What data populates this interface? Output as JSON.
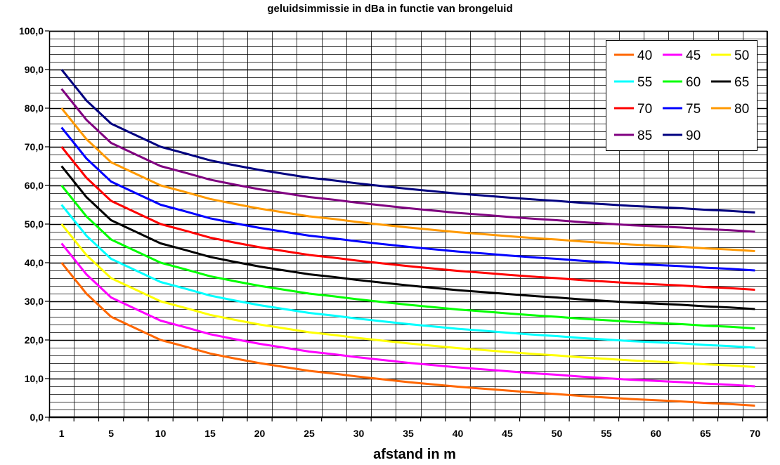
{
  "chart_data": {
    "type": "line",
    "title": "geluidsimmissie in dBa in functie van brongeluid",
    "xlabel": "afstand in m",
    "ylabel": "",
    "ylim": [
      0,
      100
    ],
    "y_ticks": [
      "0,0",
      "10,0",
      "20,0",
      "30,0",
      "40,0",
      "50,0",
      "60,0",
      "70,0",
      "80,0",
      "90,0",
      "100,0"
    ],
    "categories": [
      "1",
      "",
      "5",
      "",
      "10",
      "",
      "15",
      "",
      "20",
      "",
      "25",
      "",
      "30",
      "",
      "35",
      "",
      "40",
      "",
      "45",
      "",
      "50",
      "",
      "55",
      "",
      "60",
      "",
      "65",
      "",
      "70"
    ],
    "x_tick_labels": [
      "1",
      "5",
      "10",
      "15",
      "20",
      "25",
      "30",
      "35",
      "40",
      "45",
      "50",
      "55",
      "60",
      "65",
      "70"
    ],
    "x_values": [
      1,
      2.5,
      5,
      7.5,
      10,
      12.5,
      15,
      17.5,
      20,
      22.5,
      25,
      27.5,
      30,
      32.5,
      35,
      37.5,
      40,
      42.5,
      45,
      47.5,
      50,
      52.5,
      55,
      57.5,
      60,
      62.5,
      65,
      67.5,
      70
    ],
    "grid": true,
    "legend_position": "top-right",
    "series": [
      {
        "name": "40",
        "color": "#ff6600",
        "values": [
          40,
          32,
          26,
          23,
          20,
          18.3,
          16.5,
          15.2,
          14,
          13,
          12,
          11.3,
          10.5,
          9.8,
          9.1,
          8.5,
          7.9,
          7.4,
          6.9,
          6.4,
          6,
          5.5,
          5.1,
          4.7,
          4.4,
          4.1,
          3.7,
          3.4,
          3
        ]
      },
      {
        "name": "45",
        "color": "#ff00ff",
        "values": [
          45,
          37,
          31,
          28,
          25,
          23.3,
          21.5,
          20.2,
          19,
          18,
          17,
          16.3,
          15.5,
          14.8,
          14.1,
          13.5,
          12.9,
          12.4,
          11.9,
          11.4,
          11,
          10.5,
          10.1,
          9.7,
          9.4,
          9.1,
          8.7,
          8.4,
          8
        ]
      },
      {
        "name": "50",
        "color": "#ffff00",
        "values": [
          50,
          42,
          36,
          33,
          30,
          28.3,
          26.5,
          25.2,
          24,
          23,
          22,
          21.3,
          20.5,
          19.8,
          19.1,
          18.5,
          17.9,
          17.4,
          16.9,
          16.4,
          16,
          15.5,
          15.1,
          14.7,
          14.4,
          14.1,
          13.7,
          13.4,
          13
        ]
      },
      {
        "name": "55",
        "color": "#00ffff",
        "values": [
          55,
          47,
          41,
          38,
          35,
          33.3,
          31.5,
          30.2,
          29,
          28,
          27,
          26.3,
          25.5,
          24.8,
          24.1,
          23.5,
          22.9,
          22.4,
          21.9,
          21.4,
          21,
          20.5,
          20.1,
          19.7,
          19.4,
          19.1,
          18.7,
          18.4,
          18
        ]
      },
      {
        "name": "60",
        "color": "#00ff00",
        "values": [
          60,
          52,
          46,
          43,
          40,
          38.3,
          36.5,
          35.2,
          34,
          33,
          32,
          31.3,
          30.5,
          29.8,
          29.1,
          28.5,
          27.9,
          27.4,
          26.9,
          26.4,
          26,
          25.5,
          25.1,
          24.7,
          24.4,
          24.1,
          23.7,
          23.4,
          23
        ]
      },
      {
        "name": "65",
        "color": "#000000",
        "values": [
          65,
          57,
          51,
          48,
          45,
          43.3,
          41.5,
          40.2,
          39,
          38,
          37,
          36.3,
          35.5,
          34.8,
          34.1,
          33.5,
          32.9,
          32.4,
          31.9,
          31.4,
          31,
          30.5,
          30.1,
          29.7,
          29.4,
          29.1,
          28.7,
          28.4,
          28
        ]
      },
      {
        "name": "70",
        "color": "#ff0000",
        "values": [
          70,
          62,
          56,
          53,
          50,
          48.3,
          46.5,
          45.2,
          44,
          43,
          42,
          41.3,
          40.5,
          39.8,
          39.1,
          38.5,
          37.9,
          37.4,
          36.9,
          36.4,
          36,
          35.5,
          35.1,
          34.7,
          34.4,
          34.1,
          33.7,
          33.4,
          33
        ]
      },
      {
        "name": "75",
        "color": "#0000ff",
        "values": [
          75,
          67,
          61,
          58,
          55,
          53.3,
          51.5,
          50.2,
          49,
          48,
          47,
          46.3,
          45.5,
          44.8,
          44.1,
          43.5,
          42.9,
          42.4,
          41.9,
          41.4,
          41,
          40.5,
          40.1,
          39.7,
          39.4,
          39.1,
          38.7,
          38.4,
          38
        ]
      },
      {
        "name": "80",
        "color": "#ff9900",
        "values": [
          80,
          72,
          66,
          63,
          60,
          58.3,
          56.5,
          55.2,
          54,
          53,
          52,
          51.3,
          50.5,
          49.8,
          49.1,
          48.5,
          47.9,
          47.4,
          46.9,
          46.4,
          46,
          45.5,
          45.1,
          44.7,
          44.4,
          44.1,
          43.7,
          43.4,
          43
        ]
      },
      {
        "name": "85",
        "color": "#800080",
        "values": [
          85,
          77,
          71,
          68,
          65,
          63.3,
          61.5,
          60.2,
          59,
          58,
          57,
          56.3,
          55.5,
          54.8,
          54.1,
          53.5,
          52.9,
          52.4,
          51.9,
          51.4,
          51,
          50.5,
          50.1,
          49.7,
          49.4,
          49.1,
          48.7,
          48.4,
          48
        ]
      },
      {
        "name": "90",
        "color": "#000080",
        "values": [
          90,
          82,
          76,
          73,
          70,
          68.3,
          66.5,
          65.2,
          64,
          63,
          62,
          61.3,
          60.5,
          59.8,
          59.1,
          58.5,
          57.9,
          57.4,
          56.9,
          56.4,
          56,
          55.5,
          55.1,
          54.7,
          54.4,
          54.1,
          53.7,
          53.4,
          53
        ]
      }
    ]
  }
}
